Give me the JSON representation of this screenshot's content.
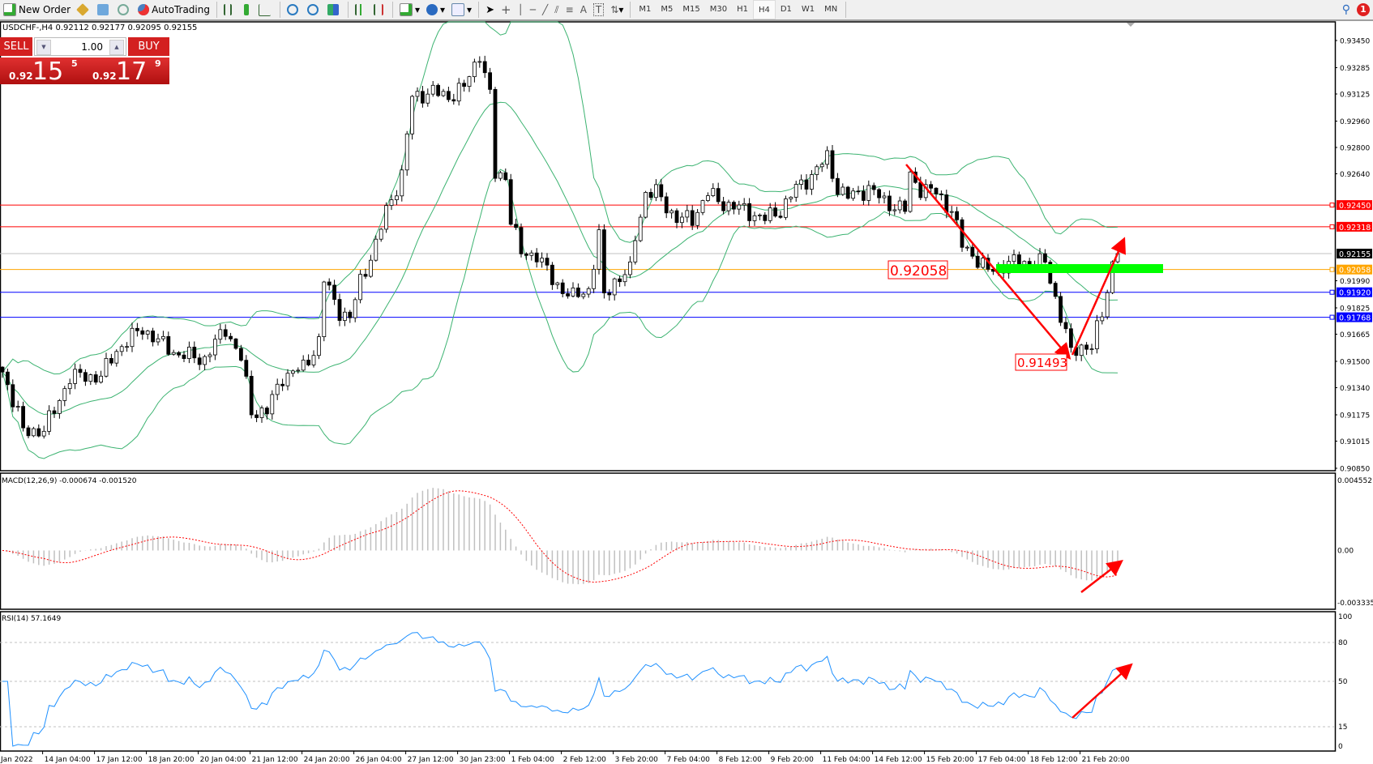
{
  "toolbar": {
    "new_order": "New Order",
    "autotrading": "AutoTrading",
    "timeframes": [
      "M1",
      "M5",
      "M15",
      "M30",
      "H1",
      "H4",
      "D1",
      "W1",
      "MN"
    ],
    "active_timeframe": "H4",
    "notification_count": "1",
    "icons": [
      "new-order-icon",
      "market-watch-icon",
      "data-window-icon",
      "signals-icon",
      "autotrading-icon",
      "bar-chart-icon",
      "candlestick-icon",
      "line-chart-icon",
      "zoom-in-icon",
      "zoom-out-icon",
      "tile-windows-icon",
      "chart-shift-icon",
      "autoscroll-icon",
      "indicators-icon",
      "periods-icon",
      "templates-icon",
      "cursor-icon",
      "crosshair-icon",
      "vertical-line-icon",
      "horizontal-line-icon",
      "trendline-icon",
      "equidistant-channel-icon",
      "fibonacci-icon",
      "text-icon",
      "text-label-icon",
      "arrows-icon",
      "search-icon"
    ]
  },
  "chart": {
    "symbol_info": "USDCHF-,H4  0.92112 0.92177 0.92095 0.92155",
    "one_click": {
      "sell_label": "SELL",
      "buy_label": "BUY",
      "lot": "1.00",
      "sell_prefix": "0.92",
      "sell_big": "15",
      "sell_pip": "5",
      "buy_prefix": "0.92",
      "buy_big": "17",
      "buy_pip": "9"
    },
    "price_ticks": [
      "0.93450",
      "0.93285",
      "0.93125",
      "0.92960",
      "0.92800",
      "0.92640",
      "0.91990",
      "0.91825",
      "0.91665",
      "0.91500",
      "0.91340",
      "0.91175",
      "0.91015",
      "0.90850"
    ],
    "price_lines": [
      {
        "price": "0.92450",
        "color": "#ff0000"
      },
      {
        "price": "0.92318",
        "color": "#ff0000"
      },
      {
        "price": "0.92155",
        "color": "#c0c0c0",
        "label_bg": "#000000"
      },
      {
        "price": "0.92058",
        "color": "#ffa500"
      },
      {
        "price": "0.91920",
        "color": "#0000ff"
      },
      {
        "price": "0.91768",
        "color": "#0000ff"
      }
    ],
    "annotations": {
      "upper_label": "0.92058",
      "lower_label": "0.91493"
    },
    "zone_color": "#00ff00",
    "date_labels": [
      "Jan 2022",
      "14 Jan 04:00",
      "17 Jan 12:00",
      "18 Jan 20:00",
      "20 Jan 04:00",
      "21 Jan 12:00",
      "24 Jan 20:00",
      "26 Jan 04:00",
      "27 Jan 12:00",
      "30 Jan 23:00",
      "1 Feb 04:00",
      "2 Feb 12:00",
      "3 Feb 20:00",
      "7 Feb 04:00",
      "8 Feb 12:00",
      "9 Feb 20:00",
      "11 Feb 04:00",
      "14 Feb 12:00",
      "15 Feb 20:00",
      "17 Feb 04:00",
      "18 Feb 12:00",
      "21 Feb 20:00"
    ],
    "macd": {
      "label": "MACD(12,26,9) -0.000674 -0.001520",
      "ticks": [
        "0.004552",
        "0.00",
        "-0.003335"
      ]
    },
    "rsi": {
      "label": "RSI(14) 57.1649",
      "ticks": [
        "100",
        "80",
        "50",
        "15",
        "0"
      ]
    }
  },
  "chart_data": {
    "type": "candlestick",
    "symbol": "USDCHF",
    "timeframe": "H4",
    "ylim": [
      0.9085,
      0.9345
    ],
    "last": {
      "open": 0.92112,
      "high": 0.92177,
      "low": 0.92095,
      "close": 0.92155
    },
    "close_keypoints": [
      [
        0,
        0.91435
      ],
      [
        3,
        0.91196
      ],
      [
        4,
        0.91063
      ],
      [
        8,
        0.91089
      ],
      [
        10,
        0.91196
      ],
      [
        13,
        0.91408
      ],
      [
        15,
        0.91408
      ],
      [
        19,
        0.91408
      ],
      [
        22,
        0.91568
      ],
      [
        27,
        0.91701
      ],
      [
        30,
        0.91621
      ],
      [
        34,
        0.91541
      ],
      [
        39,
        0.91515
      ],
      [
        43,
        0.91701
      ],
      [
        46,
        0.91515
      ],
      [
        48,
        0.91196
      ],
      [
        51,
        0.91196
      ],
      [
        54,
        0.91408
      ],
      [
        58,
        0.91461
      ],
      [
        61,
        0.91621
      ],
      [
        62,
        0.91993
      ],
      [
        65,
        0.91807
      ],
      [
        67,
        0.91754
      ],
      [
        69,
        0.91993
      ],
      [
        72,
        0.92206
      ],
      [
        74,
        0.92419
      ],
      [
        77,
        0.92631
      ],
      [
        79,
        0.9311
      ],
      [
        83,
        0.93136
      ],
      [
        86,
        0.9311
      ],
      [
        89,
        0.93163
      ],
      [
        92,
        0.93376
      ],
      [
        94,
        0.9311
      ],
      [
        95,
        0.92631
      ],
      [
        97,
        0.92631
      ],
      [
        98,
        0.92365
      ],
      [
        100,
        0.92153
      ],
      [
        103,
        0.92153
      ],
      [
        106,
        0.91993
      ],
      [
        110,
        0.91887
      ],
      [
        113,
        0.9194
      ],
      [
        115,
        0.92259
      ],
      [
        116,
        0.91887
      ],
      [
        118,
        0.91993
      ],
      [
        121,
        0.92046
      ],
      [
        122,
        0.92259
      ],
      [
        124,
        0.92525
      ],
      [
        126,
        0.92525
      ],
      [
        130,
        0.92365
      ],
      [
        133,
        0.92365
      ],
      [
        136,
        0.92525
      ],
      [
        138,
        0.92472
      ],
      [
        143,
        0.92419
      ],
      [
        147,
        0.92365
      ],
      [
        150,
        0.92419
      ],
      [
        153,
        0.92551
      ],
      [
        156,
        0.92631
      ],
      [
        159,
        0.92738
      ],
      [
        161,
        0.92551
      ],
      [
        163,
        0.92498
      ],
      [
        167,
        0.92551
      ],
      [
        170,
        0.92472
      ],
      [
        174,
        0.92419
      ],
      [
        175,
        0.92631
      ],
      [
        177,
        0.92551
      ],
      [
        180,
        0.92525
      ],
      [
        183,
        0.92419
      ],
      [
        185,
        0.92206
      ],
      [
        187,
        0.92153
      ],
      [
        190,
        0.92046
      ],
      [
        194,
        0.92099
      ],
      [
        197,
        0.92099
      ],
      [
        201,
        0.92099
      ],
      [
        202,
        0.91993
      ],
      [
        205,
        0.91674
      ],
      [
        206,
        0.91541
      ],
      [
        208,
        0.91594
      ],
      [
        210,
        0.91594
      ],
      [
        212,
        0.9178
      ],
      [
        213,
        0.9194
      ],
      [
        214,
        0.92099
      ],
      [
        215,
        0.92155
      ]
    ],
    "indicators": [
      "Bollinger Bands(20,2)",
      "MACD(12,26,9)",
      "RSI(14)"
    ],
    "colors": {
      "bands": "#3cb371",
      "macd_hist": "#c0c0c0",
      "macd_signal": "#ff0000",
      "rsi": "#1e90ff",
      "arrows": "#ff0000"
    }
  }
}
